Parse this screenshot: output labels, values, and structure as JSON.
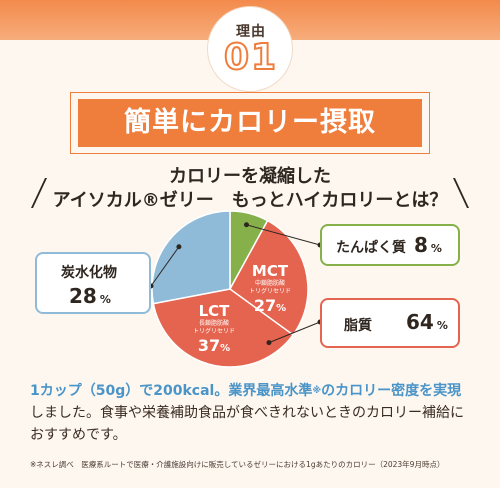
{
  "reason": {
    "label": "理由",
    "number": "01"
  },
  "title": "簡単にカロリー摂取",
  "subtitle": {
    "line1": "カロリーを凝縮した",
    "line2": "アイソカル®ゼリー　もっとハイカロリーとは？"
  },
  "chart_data": {
    "type": "pie",
    "slices": [
      {
        "name": "たんぱく質",
        "value": 8,
        "color": "#86b04a"
      },
      {
        "name": "脂質",
        "value": 64,
        "color": "#e56450",
        "parts": [
          {
            "name": "MCT",
            "sub": "中鎖脂肪酸 トリグリセリド",
            "value": 27
          },
          {
            "name": "LCT",
            "sub": "長鎖脂肪酸 トリグリセリド",
            "value": 37
          }
        ]
      },
      {
        "name": "炭水化物",
        "value": 28,
        "color": "#8fbbd9"
      }
    ],
    "unit": "%"
  },
  "callouts": {
    "protein": {
      "label": "たんぱく質",
      "value": "8",
      "unit": "%"
    },
    "fat": {
      "label": "脂質",
      "value": "64",
      "unit": "%"
    },
    "carb": {
      "label": "炭水化物",
      "value": "28",
      "unit": "%"
    },
    "mct": {
      "name": "MCT",
      "sub1": "中鎖脂肪酸",
      "sub2": "トリグリセリド",
      "value": "27",
      "unit": "%"
    },
    "lct": {
      "name": "LCT",
      "sub1": "長鎖脂肪酸",
      "sub2": "トリグリセリド",
      "value": "37",
      "unit": "%"
    }
  },
  "description": {
    "highlight1": "1カップ（50g）で200kcal。業界最高水準",
    "mark": "※",
    "highlight2": "のカロリー密度を実現",
    "rest": "しました。食事や栄養補助食品が食べきれないときのカロリー補給におすすめです。"
  },
  "note": "※ネスレ調べ　医療系ルートで医療・介護施設向けに販売しているゼリーにおける1gあたりのカロリー（2023年9月時点）",
  "colors": {
    "accent": "#ef7d3c",
    "protein": "#86b04a",
    "fat": "#e56450",
    "carb": "#8fbbd9",
    "highlight": "#4a94c8"
  }
}
